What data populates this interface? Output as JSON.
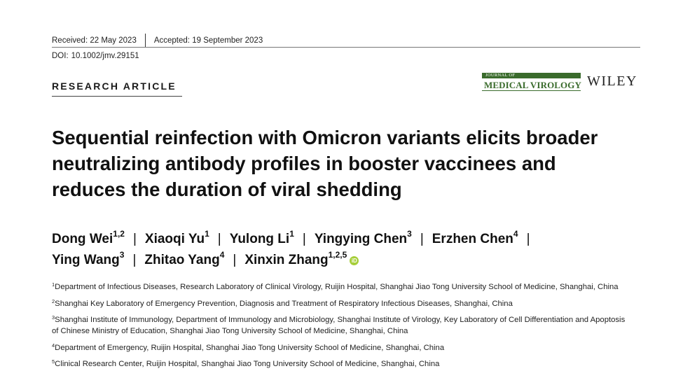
{
  "header": {
    "received_label": "Received:",
    "received_value": "22 May 2023",
    "accepted_label": "Accepted:",
    "accepted_value": "19 September 2023",
    "doi_label": "DOI:",
    "doi_value": "10.1002/jmv.29151"
  },
  "article_type": "RESEARCH ARTICLE",
  "journal": {
    "small_text": "JOURNAL OF",
    "name": "MEDICAL VIROLOGY",
    "brand_color": "#3a6b2c"
  },
  "publisher": "WILEY",
  "title": "Sequential reinfection with Omicron variants elicits broader neutralizing antibody profiles in booster vaccinees and reduces the duration of viral shedding",
  "authors": [
    {
      "name": "Dong Wei",
      "sup": "1,2"
    },
    {
      "name": "Xiaoqi Yu",
      "sup": "1"
    },
    {
      "name": "Yulong Li",
      "sup": "1"
    },
    {
      "name": "Yingying Chen",
      "sup": "3"
    },
    {
      "name": "Erzhen Chen",
      "sup": "4"
    },
    {
      "name": "Ying Wang",
      "sup": "3"
    },
    {
      "name": "Zhitao Yang",
      "sup": "4"
    },
    {
      "name": "Xinxin Zhang",
      "sup": "1,2,5"
    }
  ],
  "orcid_icon": "orcid-icon",
  "orcid_color": "#a6ce39",
  "affiliations": [
    {
      "num": "1",
      "text": "Department of Infectious Diseases, Research Laboratory of Clinical Virology, Ruijin Hospital, Shanghai Jiao Tong University School of Medicine, Shanghai, China"
    },
    {
      "num": "2",
      "text": "Shanghai Key Laboratory of Emergency Prevention, Diagnosis and Treatment of Respiratory Infectious Diseases, Shanghai, China"
    },
    {
      "num": "3",
      "text": "Shanghai Institute of Immunology, Department of Immunology and Microbiology, Shanghai Institute of Virology, Key Laboratory of Cell Differentiation and Apoptosis of Chinese Ministry of Education, Shanghai Jiao Tong University School of Medicine, Shanghai, China"
    },
    {
      "num": "4",
      "text": "Department of Emergency, Ruijin Hospital, Shanghai Jiao Tong University School of Medicine, Shanghai, China"
    },
    {
      "num": "5",
      "text": "Clinical Research Center, Ruijin Hospital, Shanghai Jiao Tong University School of Medicine, Shanghai, China"
    }
  ]
}
